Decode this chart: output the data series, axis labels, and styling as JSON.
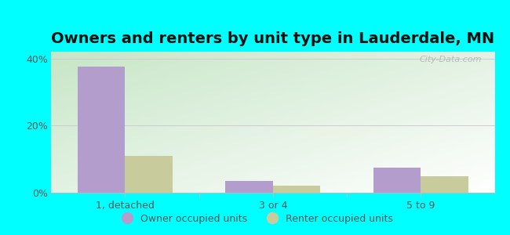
{
  "title": "Owners and renters by unit type in Lauderdale, MN",
  "categories": [
    "1, detached",
    "3 or 4",
    "5 to 9"
  ],
  "owner_values": [
    37.5,
    3.5,
    7.5
  ],
  "renter_values": [
    11.0,
    2.0,
    5.0
  ],
  "owner_color": "#b39dcc",
  "renter_color": "#c8cc9d",
  "ylim": [
    0,
    42
  ],
  "yticks": [
    0,
    20,
    40
  ],
  "ytick_labels": [
    "0%",
    "20%",
    "40%"
  ],
  "bar_width": 0.32,
  "outer_background": "#00ffff",
  "legend_owner": "Owner occupied units",
  "legend_renter": "Renter occupied units",
  "watermark": "City-Data.com",
  "title_fontsize": 14,
  "axis_fontsize": 9,
  "legend_fontsize": 9
}
